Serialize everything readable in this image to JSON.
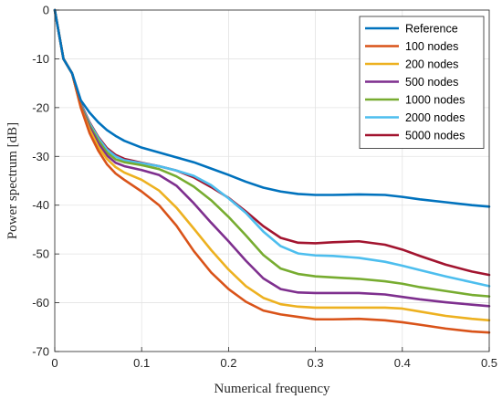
{
  "chart_data": {
    "type": "line",
    "title": "",
    "xlabel": "Numerical frequency",
    "ylabel": "Power spectrum [dB]",
    "xlim": [
      0,
      0.5
    ],
    "ylim": [
      -70,
      0
    ],
    "xticks": [
      0,
      0.1,
      0.2,
      0.3,
      0.4,
      0.5
    ],
    "xtick_labels": [
      "0",
      "0.1",
      "0.2",
      "0.3",
      "0.4",
      "0.5"
    ],
    "yticks": [
      0,
      -10,
      -20,
      -30,
      -40,
      -50,
      -60,
      -70
    ],
    "ytick_labels": [
      "0",
      "-10",
      "-20",
      "-30",
      "-40",
      "-50",
      "-60",
      "-70"
    ],
    "grid": true,
    "legend_position": "top-right",
    "x": [
      0,
      0.01,
      0.02,
      0.03,
      0.04,
      0.05,
      0.06,
      0.07,
      0.08,
      0.1,
      0.12,
      0.14,
      0.16,
      0.18,
      0.2,
      0.22,
      0.24,
      0.26,
      0.28,
      0.3,
      0.32,
      0.35,
      0.38,
      0.4,
      0.42,
      0.45,
      0.48,
      0.5
    ],
    "series": [
      {
        "name": "Reference",
        "color": "#0072BD",
        "values": [
          0,
          -10,
          -13,
          -18.5,
          -21,
          -23,
          -24.6,
          -25.8,
          -26.8,
          -28.2,
          -29.2,
          -30.2,
          -31.2,
          -32.5,
          -33.8,
          -35.2,
          -36.4,
          -37.2,
          -37.7,
          -37.9,
          -37.9,
          -37.8,
          -37.9,
          -38.3,
          -38.8,
          -39.4,
          -40,
          -40.3
        ]
      },
      {
        "name": "100 nodes",
        "color": "#D95319",
        "values": [
          0,
          -10,
          -13,
          -20,
          -25.2,
          -28.8,
          -31.6,
          -33.5,
          -34.8,
          -37.2,
          -40,
          -44.2,
          -49.4,
          -53.8,
          -57.2,
          -59.8,
          -61.6,
          -62.4,
          -62.9,
          -63.4,
          -63.4,
          -63.3,
          -63.6,
          -64,
          -64.5,
          -65.3,
          -65.9,
          -66.1
        ]
      },
      {
        "name": "200 nodes",
        "color": "#EDB120",
        "values": [
          0,
          -10,
          -13,
          -20,
          -24.5,
          -28,
          -30.5,
          -32.2,
          -33.3,
          -34.8,
          -37,
          -40.5,
          -44.8,
          -49.2,
          -53.2,
          -56.6,
          -59,
          -60.3,
          -60.8,
          -61,
          -61,
          -61,
          -61,
          -61.2,
          -61.8,
          -62.7,
          -63.3,
          -63.6
        ]
      },
      {
        "name": "500 nodes",
        "color": "#7E2F8E",
        "values": [
          0,
          -10,
          -13,
          -19.8,
          -24,
          -27.3,
          -29.8,
          -31.3,
          -32,
          -32.8,
          -33.8,
          -36,
          -39.6,
          -43.6,
          -47.4,
          -51.4,
          -55,
          -57.2,
          -57.9,
          -58,
          -58,
          -58,
          -58.3,
          -58.8,
          -59.3,
          -59.9,
          -60.4,
          -60.7
        ]
      },
      {
        "name": "1000 nodes",
        "color": "#77AC30",
        "values": [
          0,
          -10,
          -13,
          -19.6,
          -23.6,
          -26.7,
          -29.2,
          -30.6,
          -31.2,
          -31.8,
          -32.6,
          -34.1,
          -36.2,
          -39,
          -42.4,
          -46.2,
          -50.2,
          -53,
          -54.1,
          -54.6,
          -54.8,
          -55.1,
          -55.6,
          -56.1,
          -56.8,
          -57.6,
          -58.4,
          -58.7
        ]
      },
      {
        "name": "2000 nodes",
        "color": "#4DBEEE",
        "values": [
          0,
          -10,
          -13,
          -19.4,
          -23.2,
          -26.2,
          -28.6,
          -30,
          -30.8,
          -31.4,
          -32,
          -32.9,
          -34,
          -35.9,
          -38.6,
          -41.6,
          -45.4,
          -48.4,
          -49.9,
          -50.3,
          -50.4,
          -50.8,
          -51.6,
          -52.4,
          -53.3,
          -54.6,
          -55.8,
          -56.6
        ]
      },
      {
        "name": "5000 nodes",
        "color": "#A2142F",
        "values": [
          0,
          -10,
          -13,
          -19.2,
          -23,
          -26,
          -28.3,
          -29.7,
          -30.5,
          -31.3,
          -32,
          -32.9,
          -34.3,
          -36.3,
          -38.5,
          -41.3,
          -44.3,
          -46.7,
          -47.7,
          -47.8,
          -47.6,
          -47.4,
          -48.1,
          -49.1,
          -50.4,
          -52.2,
          -53.6,
          -54.3
        ]
      }
    ]
  }
}
